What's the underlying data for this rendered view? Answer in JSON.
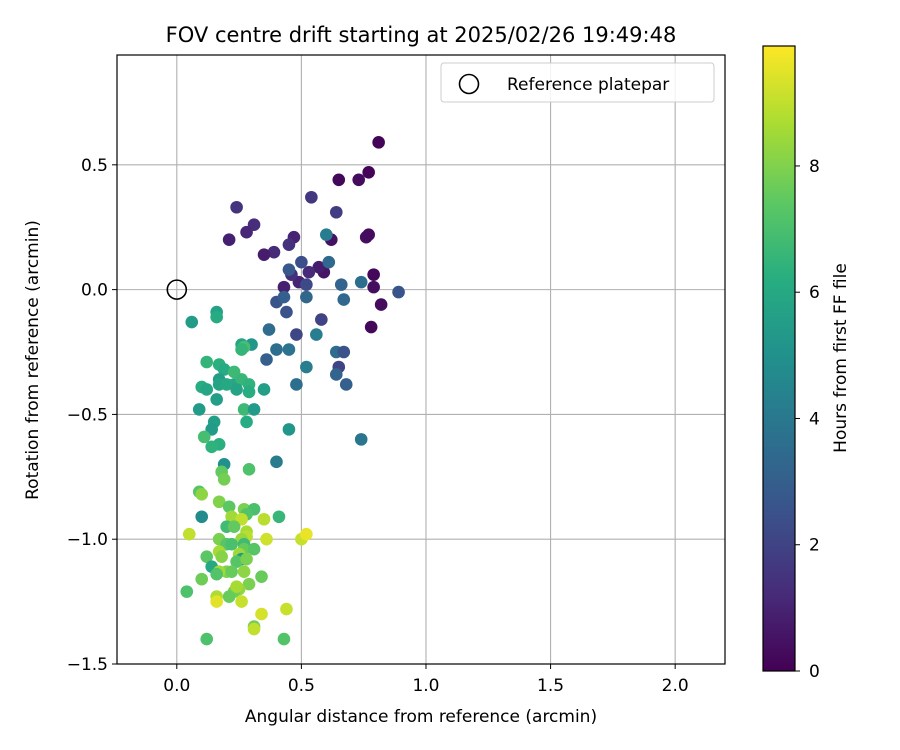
{
  "chart_data": {
    "type": "scatter",
    "title": "FOV centre drift starting at 2025/02/26 19:49:48",
    "xlabel": "Angular distance from reference (arcmin)",
    "ylabel": "Rotation from reference (arcmin)",
    "xlim": [
      -0.24,
      2.2
    ],
    "ylim": [
      -1.5,
      0.94
    ],
    "xticks": [
      0.0,
      0.5,
      1.0,
      1.5,
      2.0
    ],
    "xtick_labels": [
      "0.0",
      "0.5",
      "1.0",
      "1.5",
      "2.0"
    ],
    "yticks": [
      -1.5,
      -1.0,
      -0.5,
      0.0,
      0.5
    ],
    "ytick_labels": [
      "−1.5",
      "−1.0",
      "−0.5",
      "0.0",
      "0.5"
    ],
    "grid": true,
    "colormap": "viridis",
    "colorbar": {
      "label": "Hours from first FF file",
      "range": [
        0,
        9.9
      ],
      "ticks": [
        0,
        2,
        4,
        6,
        8
      ],
      "tick_labels": [
        "0",
        "2",
        "4",
        "6",
        "8"
      ]
    },
    "legend": {
      "position": "top-right",
      "entries": [
        "Reference platepar"
      ]
    },
    "reference_marker": {
      "x": 0.0,
      "y": 0.0
    },
    "series": [
      {
        "points": [
          [
            0.81,
            0.59,
            0.1
          ],
          [
            0.65,
            0.44,
            0.2
          ],
          [
            0.73,
            0.44,
            0.3
          ],
          [
            0.77,
            0.47,
            0.1
          ],
          [
            0.76,
            0.21,
            0.4
          ],
          [
            0.77,
            0.22,
            0.3
          ],
          [
            0.62,
            0.2,
            0.5
          ],
          [
            0.79,
            0.06,
            0.2
          ],
          [
            0.79,
            0.01,
            0.4
          ],
          [
            0.82,
            -0.06,
            0.3
          ],
          [
            0.78,
            -0.15,
            0.2
          ],
          [
            0.59,
            0.07,
            0.6
          ],
          [
            0.57,
            0.09,
            0.8
          ],
          [
            0.53,
            0.07,
            1.2
          ],
          [
            0.43,
            0.01,
            0.9
          ],
          [
            0.49,
            0.03,
            1.0
          ],
          [
            0.46,
            0.06,
            1.3
          ],
          [
            0.54,
            0.37,
            1.6
          ],
          [
            0.64,
            0.31,
            1.8
          ],
          [
            0.24,
            0.33,
            1.5
          ],
          [
            0.31,
            0.26,
            1.3
          ],
          [
            0.28,
            0.23,
            1.1
          ],
          [
            0.21,
            0.2,
            0.9
          ],
          [
            0.47,
            0.21,
            1.0
          ],
          [
            0.45,
            0.18,
            1.4
          ],
          [
            0.39,
            0.15,
            1.2
          ],
          [
            0.35,
            0.14,
            0.8
          ],
          [
            0.89,
            -0.01,
            2.6
          ],
          [
            0.74,
            0.03,
            3.6
          ],
          [
            0.66,
            0.02,
            3.2
          ],
          [
            0.5,
            0.11,
            2.4
          ],
          [
            0.45,
            0.08,
            2.8
          ],
          [
            0.52,
            0.02,
            2.2
          ],
          [
            0.4,
            -0.05,
            2.6
          ],
          [
            0.43,
            -0.03,
            3.0
          ],
          [
            0.52,
            -0.03,
            3.3
          ],
          [
            0.58,
            -0.12,
            2.0
          ],
          [
            0.44,
            -0.09,
            2.5
          ],
          [
            0.48,
            -0.18,
            2.1
          ],
          [
            0.56,
            -0.18,
            4.2
          ],
          [
            0.67,
            -0.04,
            3.4
          ],
          [
            0.37,
            -0.16,
            3.5
          ],
          [
            0.36,
            -0.28,
            3.0
          ],
          [
            0.4,
            -0.24,
            3.6
          ],
          [
            0.45,
            -0.24,
            3.8
          ],
          [
            0.52,
            -0.31,
            4.2
          ],
          [
            0.64,
            -0.25,
            3.5
          ],
          [
            0.67,
            -0.25,
            2.5
          ],
          [
            0.65,
            -0.31,
            2.0
          ],
          [
            0.64,
            -0.34,
            3.2
          ],
          [
            0.68,
            -0.38,
            3.0
          ],
          [
            0.48,
            -0.38,
            3.6
          ],
          [
            0.61,
            0.11,
            3.4
          ],
          [
            0.6,
            0.22,
            4.1
          ],
          [
            0.74,
            -0.6,
            3.9
          ],
          [
            0.45,
            -0.56,
            5.2
          ],
          [
            0.4,
            -0.69,
            4.1
          ],
          [
            0.06,
            -0.13,
            5.4
          ],
          [
            0.16,
            -0.09,
            5.7
          ],
          [
            0.16,
            -0.11,
            6.1
          ],
          [
            0.3,
            -0.22,
            5.2
          ],
          [
            0.26,
            -0.22,
            5.8
          ],
          [
            0.27,
            -0.23,
            6.9
          ],
          [
            0.26,
            -0.24,
            6.5
          ],
          [
            0.12,
            -0.29,
            6.5
          ],
          [
            0.17,
            -0.3,
            6.3
          ],
          [
            0.19,
            -0.32,
            6.1
          ],
          [
            0.23,
            -0.33,
            6.7
          ],
          [
            0.23,
            -0.38,
            5.9
          ],
          [
            0.26,
            -0.36,
            6.6
          ],
          [
            0.17,
            -0.36,
            5.5
          ],
          [
            0.17,
            -0.38,
            5.8
          ],
          [
            0.2,
            -0.38,
            6.0
          ],
          [
            0.1,
            -0.39,
            6.2
          ],
          [
            0.12,
            -0.4,
            5.9
          ],
          [
            0.29,
            -0.38,
            6.4
          ],
          [
            0.29,
            -0.41,
            6.2
          ],
          [
            0.24,
            -0.4,
            5.8
          ],
          [
            0.35,
            -0.4,
            5.6
          ],
          [
            0.16,
            -0.44,
            5.6
          ],
          [
            0.27,
            -0.48,
            6.7
          ],
          [
            0.31,
            -0.48,
            5.4
          ],
          [
            0.09,
            -0.48,
            5.4
          ],
          [
            0.15,
            -0.53,
            5.6
          ],
          [
            0.14,
            -0.56,
            5.4
          ],
          [
            0.28,
            -0.53,
            6.1
          ],
          [
            0.17,
            -0.62,
            6.3
          ],
          [
            0.11,
            -0.59,
            6.9
          ],
          [
            0.14,
            -0.63,
            6.4
          ],
          [
            0.19,
            -0.7,
            5.0
          ],
          [
            0.18,
            -0.73,
            7.5
          ],
          [
            0.29,
            -0.72,
            7.1
          ],
          [
            0.19,
            -0.76,
            7.8
          ],
          [
            0.09,
            -0.81,
            7.3
          ],
          [
            0.1,
            -0.82,
            8.2
          ],
          [
            0.17,
            -0.85,
            8.0
          ],
          [
            0.21,
            -0.87,
            7.4
          ],
          [
            0.27,
            -0.88,
            7.9
          ],
          [
            0.31,
            -0.88,
            7.0
          ],
          [
            0.28,
            -0.9,
            7.2
          ],
          [
            0.41,
            -0.91,
            6.6
          ],
          [
            0.35,
            -0.92,
            8.9
          ],
          [
            0.22,
            -0.91,
            8.5
          ],
          [
            0.26,
            -0.92,
            9.0
          ],
          [
            0.1,
            -0.91,
            4.8
          ],
          [
            0.2,
            -0.95,
            6.8
          ],
          [
            0.23,
            -0.95,
            7.5
          ],
          [
            0.28,
            -0.97,
            8.6
          ],
          [
            0.28,
            -0.99,
            8.9
          ],
          [
            0.05,
            -0.98,
            9.0
          ],
          [
            0.26,
            -1.0,
            8.4
          ],
          [
            0.17,
            -1.0,
            7.9
          ],
          [
            0.2,
            -1.02,
            7.3
          ],
          [
            0.22,
            -1.02,
            7.0
          ],
          [
            0.27,
            -1.02,
            6.8
          ],
          [
            0.27,
            -1.04,
            7.6
          ],
          [
            0.31,
            -1.04,
            7.3
          ],
          [
            0.36,
            -1.0,
            9.2
          ],
          [
            0.5,
            -1.0,
            9.1
          ],
          [
            0.52,
            -0.98,
            9.6
          ],
          [
            0.17,
            -1.05,
            8.6
          ],
          [
            0.18,
            -1.07,
            8.1
          ],
          [
            0.25,
            -1.06,
            8.5
          ],
          [
            0.12,
            -1.07,
            7.4
          ],
          [
            0.26,
            -1.08,
            5.4
          ],
          [
            0.24,
            -1.09,
            7.3
          ],
          [
            0.28,
            -1.08,
            7.9
          ],
          [
            0.14,
            -1.11,
            6.0
          ],
          [
            0.2,
            -1.13,
            8.0
          ],
          [
            0.22,
            -1.13,
            7.6
          ],
          [
            0.27,
            -1.13,
            8.2
          ],
          [
            0.17,
            -1.13,
            8.5
          ],
          [
            0.16,
            -1.14,
            7.2
          ],
          [
            0.1,
            -1.16,
            7.7
          ],
          [
            0.34,
            -1.15,
            7.6
          ],
          [
            0.29,
            -1.18,
            7.9
          ],
          [
            0.25,
            -1.2,
            8.3
          ],
          [
            0.23,
            -1.21,
            7.8
          ],
          [
            0.24,
            -1.19,
            8.6
          ],
          [
            0.04,
            -1.21,
            7.1
          ],
          [
            0.21,
            -1.23,
            7.6
          ],
          [
            0.16,
            -1.23,
            8.7
          ],
          [
            0.16,
            -1.25,
            9.5
          ],
          [
            0.26,
            -1.25,
            9.1
          ],
          [
            0.44,
            -1.28,
            9.1
          ],
          [
            0.34,
            -1.3,
            9.3
          ],
          [
            0.31,
            -1.35,
            7.8
          ],
          [
            0.31,
            -1.36,
            9.0
          ],
          [
            0.12,
            -1.4,
            7.1
          ],
          [
            0.43,
            -1.4,
            7.2
          ]
        ]
      }
    ]
  }
}
